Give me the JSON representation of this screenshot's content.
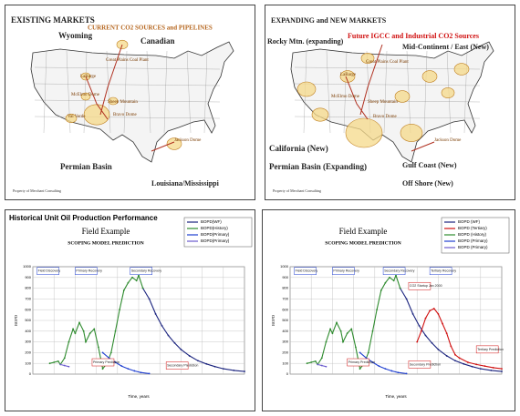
{
  "maps": [
    {
      "title": "EXISTING MARKETS",
      "subtitle": "CURRENT CO2 SOURCES and PIPELINES",
      "labels": [
        "Wyoming",
        "Canadian",
        "Permian Basin",
        "Louisiana/Mississippi"
      ],
      "sources": [
        "Great Plains Coal Plant",
        "LaBarge",
        "McElmo Dome",
        "Sheep Mountain",
        "Bravo Dome",
        "Jackson Dome",
        "Val Verde"
      ],
      "footer": "Property of Merchant Consulting"
    },
    {
      "title": "EXPANDING and NEW MARKETS",
      "subtitle": "Future IGCC and Industrial CO2 Sources",
      "labels": [
        "Rocky Mtn. (expanding)",
        "Mid-Continent / East (New)",
        "California (New)",
        "Permian Basin (Expanding)",
        "Gulf Coast (New)",
        "Off Shore (New)"
      ],
      "sources": [
        "Great Plains Coal Plant",
        "LaBarge",
        "McElmo Dome",
        "Sheep Mountain",
        "Bravo Dome",
        "Jackson Dome"
      ],
      "footer": "Property of Merchant Consulting"
    }
  ],
  "chart_data": [
    {
      "type": "line",
      "heading": "Historical Unit Oil Production Performance",
      "title": "Field Example",
      "subtitle": "SCOPING MODEL PREDICTION",
      "y_label": "BOPD",
      "x_label": "Time, years",
      "xlim": [
        0,
        100
      ],
      "xticks": [
        0,
        10,
        20,
        30,
        40,
        50,
        60,
        70,
        80,
        90,
        100
      ],
      "ylim": [
        0,
        1000
      ],
      "yticks": [
        0,
        100,
        200,
        300,
        400,
        500,
        600,
        700,
        800,
        900,
        1000
      ],
      "grid": true,
      "series": [
        {
          "name": "BOPD(WF)",
          "color": "#1a237e",
          "x": [
            52,
            55,
            58,
            61,
            64,
            67,
            70,
            74,
            78,
            82,
            86,
            90,
            95,
            100
          ],
          "values": [
            800,
            700,
            560,
            450,
            360,
            290,
            230,
            170,
            125,
            95,
            70,
            50,
            35,
            25
          ]
        },
        {
          "name": "BOPD(History)",
          "color": "#2e8b2e",
          "x": [
            8,
            10,
            12,
            13,
            15,
            17,
            19,
            20,
            22,
            24,
            25,
            27,
            29,
            31,
            33,
            35,
            37,
            39,
            41,
            43,
            45,
            47,
            49,
            50,
            52
          ],
          "values": [
            100,
            110,
            120,
            90,
            150,
            300,
            420,
            380,
            480,
            400,
            300,
            380,
            420,
            250,
            50,
            100,
            200,
            400,
            600,
            780,
            850,
            900,
            870,
            920,
            800
          ]
        },
        {
          "name": "BOPD(Primary)",
          "color": "#1f3fd0",
          "x": [
            33,
            36,
            39,
            42,
            45,
            48,
            51,
            55
          ],
          "values": [
            200,
            150,
            110,
            75,
            50,
            30,
            15,
            5
          ]
        },
        {
          "name": "BOPD(Primary)",
          "color": "#6a5acd",
          "x": [
            13,
            15,
            17
          ],
          "values": [
            90,
            80,
            70
          ]
        }
      ],
      "annotations": [
        "Field Discovery",
        "Primary Recovery",
        "Secondary Recovery",
        "Primary Prediction",
        "Secondary Prediction"
      ]
    },
    {
      "type": "line",
      "title": "Field Example",
      "subtitle": "SCOPING MODEL PREDICTION",
      "y_label": "BOPD",
      "x_label": "Time, years",
      "xlim": [
        0,
        100
      ],
      "xticks": [
        0,
        10,
        20,
        30,
        40,
        50,
        60,
        70,
        80,
        90,
        100
      ],
      "ylim": [
        0,
        1000
      ],
      "yticks": [
        0,
        100,
        200,
        300,
        400,
        500,
        600,
        700,
        800,
        900,
        1000
      ],
      "grid": true,
      "series": [
        {
          "name": "BOPD (WF)",
          "color": "#1a237e",
          "x": [
            52,
            55,
            58,
            61,
            64,
            67,
            70,
            74,
            78,
            82,
            86,
            90,
            95,
            100
          ],
          "values": [
            800,
            700,
            560,
            450,
            360,
            290,
            230,
            170,
            125,
            95,
            70,
            50,
            35,
            25
          ]
        },
        {
          "name": "BOPD (Tertiary)",
          "color": "#d01010",
          "x": [
            60,
            62,
            64,
            66,
            68,
            70,
            72,
            74,
            76,
            78,
            80,
            84,
            88,
            92,
            96,
            100
          ],
          "values": [
            300,
            400,
            520,
            590,
            610,
            560,
            470,
            380,
            260,
            180,
            150,
            110,
            90,
            75,
            60,
            50
          ]
        },
        {
          "name": "BOPD (History)",
          "color": "#2e8b2e",
          "x": [
            8,
            10,
            12,
            13,
            15,
            17,
            19,
            20,
            22,
            24,
            25,
            27,
            29,
            31,
            33,
            35,
            37,
            39,
            41,
            43,
            45,
            47,
            49,
            50,
            52
          ],
          "values": [
            100,
            110,
            120,
            90,
            150,
            300,
            420,
            380,
            480,
            400,
            300,
            380,
            420,
            250,
            50,
            100,
            200,
            400,
            600,
            780,
            850,
            900,
            870,
            920,
            800
          ]
        },
        {
          "name": "BOPD (Primary)",
          "color": "#1f3fd0",
          "x": [
            33,
            36,
            39,
            42,
            45,
            48,
            51,
            55
          ],
          "values": [
            200,
            150,
            110,
            75,
            50,
            30,
            15,
            5
          ]
        },
        {
          "name": "BOPD (Primary)",
          "color": "#6a5acd",
          "x": [
            13,
            15,
            17
          ],
          "values": [
            90,
            80,
            70
          ]
        }
      ],
      "annotations": [
        "Field Discovery",
        "Primary Recovery",
        "Secondary Recovery",
        "Tertiary Recovery",
        "CO2 Startup Jan 2000",
        "Primary Prediction",
        "Secondary Prediction",
        "Tertiary Prediction"
      ]
    }
  ]
}
